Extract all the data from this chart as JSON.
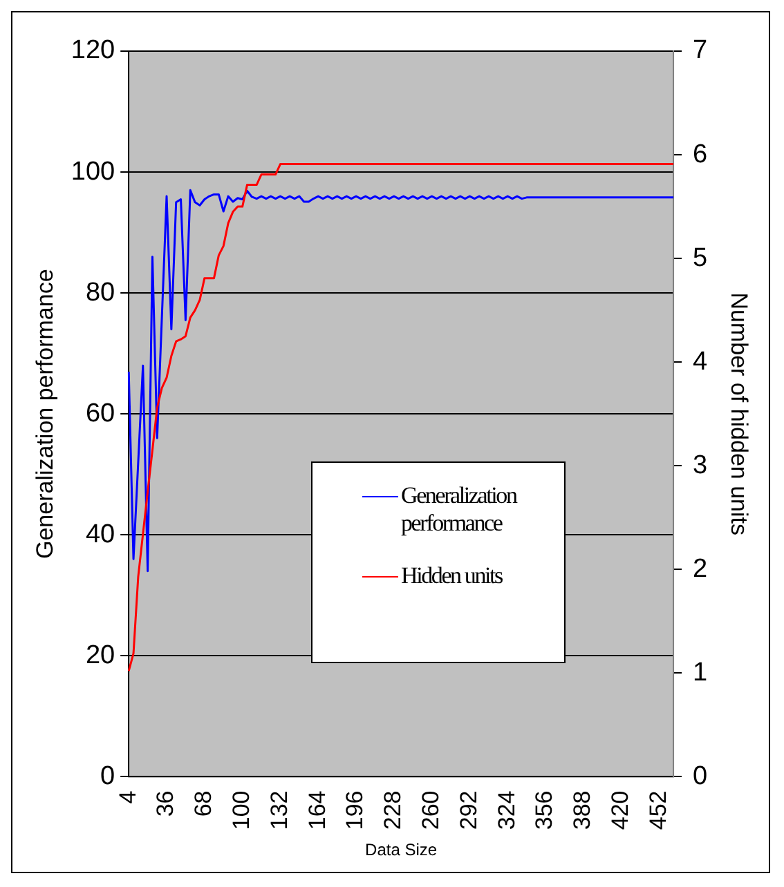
{
  "chart_data": {
    "type": "line",
    "xlabel": "Data Size",
    "ylabel": "Generalization performance",
    "y2label": "Number of hidden units",
    "categories": [
      "4",
      null,
      null,
      null,
      null,
      null,
      null,
      null,
      "36",
      null,
      null,
      null,
      null,
      null,
      null,
      null,
      "68",
      null,
      null,
      null,
      null,
      null,
      null,
      null,
      "100",
      null,
      null,
      null,
      null,
      null,
      null,
      null,
      "132",
      null,
      null,
      null,
      null,
      null,
      null,
      null,
      "164",
      null,
      null,
      null,
      null,
      null,
      null,
      null,
      "196",
      null,
      null,
      null,
      null,
      null,
      null,
      null,
      "228",
      null,
      null,
      null,
      null,
      null,
      null,
      null,
      "260",
      null,
      null,
      null,
      null,
      null,
      null,
      null,
      "292",
      null,
      null,
      null,
      null,
      null,
      null,
      null,
      "324",
      null,
      null,
      null,
      null,
      null,
      null,
      null,
      "356",
      null,
      null,
      null,
      null,
      null,
      null,
      null,
      "388",
      null,
      null,
      null,
      null,
      null,
      null,
      null,
      "420",
      null,
      null,
      null,
      null,
      null,
      null,
      null,
      "452",
      null,
      null,
      null
    ],
    "series": [
      {
        "name": "Generalization performance",
        "color": "#0000ff",
        "values": [
          67,
          36,
          52,
          68,
          34,
          86,
          56,
          76,
          96,
          74,
          95,
          95.5,
          75.5,
          97,
          95,
          94.5,
          95.5,
          96,
          96.3,
          96.3,
          93.5,
          96,
          95.1,
          95.7,
          95.5,
          96.9,
          95.9,
          95.6,
          96,
          95.6,
          96,
          95.6,
          96,
          95.6,
          96,
          95.6,
          96,
          95.1,
          95.1,
          95.6,
          96,
          95.6,
          96,
          95.6,
          96,
          95.6,
          96,
          95.6,
          96,
          95.6,
          96,
          95.6,
          96,
          95.6,
          96,
          95.6,
          96,
          95.6,
          96,
          95.6,
          96,
          95.6,
          96,
          95.6,
          96,
          95.6,
          96,
          95.6,
          96,
          95.6,
          96,
          95.6,
          96,
          95.6,
          96,
          95.6,
          96,
          95.6,
          96,
          95.6,
          96,
          95.6,
          96,
          95.6,
          95.8,
          95.8,
          95.8,
          95.8,
          95.8,
          95.8,
          95.8,
          95.8,
          95.8,
          95.8,
          95.8,
          95.8,
          95.8,
          95.8,
          95.8,
          95.8,
          95.8,
          95.8,
          95.8,
          95.8,
          95.8,
          95.8,
          95.8,
          95.8,
          95.8,
          95.8,
          95.8,
          95.8,
          95.8,
          95.8,
          95.8,
          95.8
        ]
      },
      {
        "name": "Hidden units",
        "color": "#ff0000",
        "axis": "y2",
        "values": [
          1.02,
          1.19,
          1.93,
          2.34,
          2.75,
          3.15,
          3.56,
          3.75,
          3.85,
          4.06,
          4.2,
          4.22,
          4.25,
          4.43,
          4.5,
          4.6,
          4.81,
          4.81,
          4.81,
          5.03,
          5.12,
          5.34,
          5.45,
          5.5,
          5.5,
          5.71,
          5.71,
          5.71,
          5.81,
          5.81,
          5.81,
          5.81,
          5.91,
          5.91,
          5.91,
          5.91,
          5.91,
          5.91,
          5.91,
          5.91,
          5.91,
          5.91,
          5.91,
          5.91,
          5.91,
          5.91,
          5.91,
          5.91,
          5.91,
          5.91,
          5.91,
          5.91,
          5.91,
          5.91,
          5.91,
          5.91,
          5.91,
          5.91,
          5.91,
          5.91,
          5.91,
          5.91,
          5.91,
          5.91,
          5.91,
          5.91,
          5.91,
          5.91,
          5.91,
          5.91,
          5.91,
          5.91,
          5.91,
          5.91,
          5.91,
          5.91,
          5.91,
          5.91,
          5.91,
          5.91,
          5.91,
          5.91,
          5.91,
          5.91,
          5.91,
          5.91,
          5.91,
          5.91,
          5.91,
          5.91,
          5.91,
          5.91,
          5.91,
          5.91,
          5.91,
          5.91,
          5.91,
          5.91,
          5.91,
          5.91,
          5.91,
          5.91,
          5.91,
          5.91,
          5.91,
          5.91,
          5.91,
          5.91,
          5.91,
          5.91,
          5.91,
          5.91,
          5.91,
          5.91,
          5.91,
          5.91
        ]
      }
    ],
    "ylim": [
      0,
      120
    ],
    "yticks": [
      0,
      20,
      40,
      60,
      80,
      100,
      120
    ],
    "y2lim": [
      0,
      7
    ],
    "y2ticks": [
      0,
      1,
      2,
      3,
      4,
      5,
      6,
      7
    ],
    "grid": "y",
    "legend": "bottom right",
    "marker": "none",
    "line_style": "solid"
  }
}
